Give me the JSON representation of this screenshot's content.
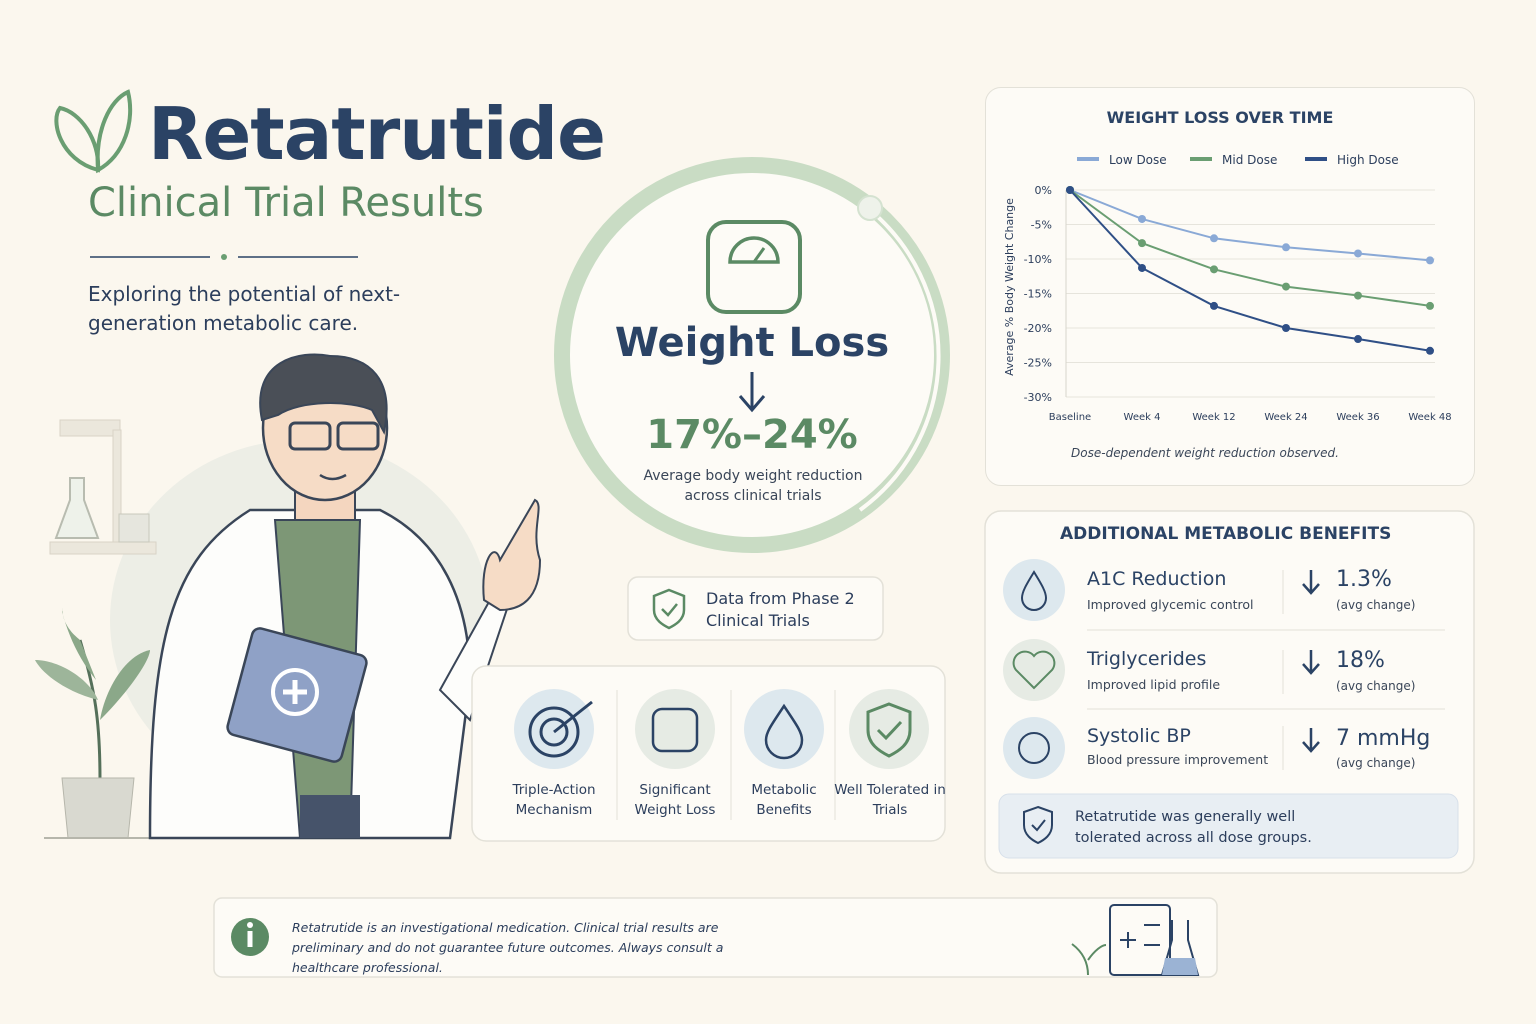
{
  "header": {
    "title": "Retatrutide",
    "subtitle": "Clinical Trial Results",
    "tagline": "Exploring the potential of next-generation metabolic care."
  },
  "highlight": {
    "label": "Weight Loss",
    "value": "17%–24%",
    "description": "Average body weight reduction across clinical trials"
  },
  "badge": "Data from Phase 2 Clinical Trials",
  "features": [
    "Triple-Action Mechanism",
    "Significant Weight Loss",
    "Metabolic Benefits",
    "Well Tolerated in Trials"
  ],
  "chart_data": {
    "type": "line",
    "title": "WEIGHT LOSS OVER TIME",
    "y_label": "Average % Body Weight Change",
    "caption": "Dose-dependent weight reduction observed.",
    "categories": [
      "Baseline",
      "Week 4",
      "Week 12",
      "Week 24",
      "Week 36",
      "Week 48"
    ],
    "series": [
      {
        "name": "Low Dose",
        "color": "#8aa9d6",
        "values": [
          0,
          -4.2,
          -7,
          -8.3,
          -9.2,
          -10.2
        ]
      },
      {
        "name": "Mid Dose",
        "color": "#6a9e72",
        "values": [
          0,
          -7.7,
          -11.5,
          -14,
          -15.3,
          -16.8
        ]
      },
      {
        "name": "High Dose",
        "color": "#2f4f86",
        "values": [
          0,
          -11.3,
          -16.8,
          -20,
          -21.6,
          -23.3
        ]
      }
    ],
    "ylim": [
      -30,
      0
    ],
    "yticks": [
      {
        "value": 0,
        "label": "0%"
      },
      {
        "value": -5,
        "label": "-5%"
      },
      {
        "value": -10,
        "label": "-10%"
      },
      {
        "value": -15,
        "label": "-15%"
      },
      {
        "value": -20,
        "label": "-20%"
      },
      {
        "value": -25,
        "label": "-25%"
      },
      {
        "value": -30,
        "label": "-30%"
      }
    ],
    "grid": true,
    "legend": "top"
  },
  "benefits": {
    "title": "ADDITIONAL METABOLIC BENEFITS",
    "items": [
      {
        "name": "A1C Reduction",
        "description": "Improved glycemic control",
        "value": "1.3%",
        "note": "(avg change)"
      },
      {
        "name": "Triglycerides",
        "description": "Improved lipid profile",
        "value": "18%",
        "note": "(avg change)"
      },
      {
        "name": "Systolic BP",
        "description": "Blood pressure improvement",
        "value": "7 mmHg",
        "note": "(avg change)"
      }
    ],
    "note": "Retatrutide was generally well tolerated across all dose groups."
  },
  "disclaimer": "Retatrutide is an investigational medication. Clinical trial results are preliminary and do not guarantee future outcomes. Always consult a healthcare professional."
}
